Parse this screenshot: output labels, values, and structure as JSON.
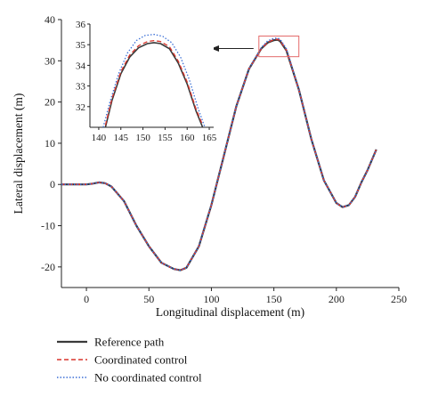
{
  "chart_data": {
    "type": "line",
    "xlabel": "Longitudinal displacement (m)",
    "ylabel": "Lateral displacement (m)",
    "xlim": [
      -20,
      250
    ],
    "ylim": [
      -25,
      40
    ],
    "xticks": [
      0,
      50,
      100,
      150,
      200,
      250
    ],
    "yticks": [
      -20,
      -10,
      0,
      10,
      20,
      30,
      40
    ],
    "grid": false,
    "legend_position": "bottom-left",
    "series": [
      {
        "name": "Reference path",
        "color": "#3a3a3a",
        "style": "solid",
        "x": [
          -20,
          0,
          5,
          10,
          15,
          20,
          30,
          40,
          50,
          60,
          70,
          75,
          80,
          90,
          100,
          110,
          120,
          130,
          140,
          145,
          150,
          153,
          155,
          160,
          170,
          180,
          190,
          200,
          205,
          210,
          215,
          220,
          225,
          232
        ],
        "y": [
          0,
          0,
          0.2,
          0.5,
          0.3,
          -0.5,
          -4,
          -10,
          -15,
          -19,
          -20.5,
          -20.8,
          -20.2,
          -15,
          -5,
          7,
          19,
          28,
          33,
          34.4,
          35.0,
          35.1,
          34.8,
          32.5,
          23,
          11,
          1,
          -4.5,
          -5.5,
          -5,
          -3,
          0.5,
          3.5,
          8.5
        ]
      },
      {
        "name": "Coordinated control",
        "color": "#d9342b",
        "style": "dashed",
        "x": [
          -20,
          0,
          5,
          10,
          15,
          20,
          30,
          40,
          50,
          60,
          70,
          75,
          80,
          90,
          100,
          110,
          120,
          130,
          140,
          145,
          150,
          153,
          155,
          160,
          170,
          180,
          190,
          200,
          205,
          210,
          215,
          220,
          225,
          232
        ],
        "y": [
          0,
          0,
          0.2,
          0.5,
          0.3,
          -0.5,
          -4,
          -10,
          -15,
          -19,
          -20.5,
          -20.8,
          -20.2,
          -15,
          -5,
          7,
          19,
          28,
          33,
          34.5,
          35.15,
          35.25,
          34.95,
          32.6,
          23,
          11,
          1,
          -4.5,
          -5.5,
          -5,
          -3,
          0.5,
          3.5,
          8.5
        ]
      },
      {
        "name": "No coordinated control",
        "color": "#3b6fd6",
        "style": "dotted",
        "x": [
          -20,
          0,
          5,
          10,
          15,
          20,
          30,
          40,
          50,
          60,
          70,
          75,
          80,
          90,
          100,
          110,
          120,
          130,
          140,
          145,
          150,
          153,
          155,
          160,
          170,
          180,
          190,
          200,
          205,
          210,
          215,
          220,
          225,
          232
        ],
        "y": [
          0,
          0,
          0.2,
          0.5,
          0.3,
          -0.5,
          -4,
          -10,
          -15,
          -19,
          -20.5,
          -20.8,
          -20.2,
          -15,
          -5,
          7,
          19,
          28,
          33.2,
          34.8,
          35.45,
          35.5,
          35.2,
          32.9,
          23,
          11,
          1,
          -4.5,
          -5.5,
          -5,
          -3,
          0.5,
          3.5,
          8.5
        ]
      }
    ],
    "zoom_box": {
      "xrange": [
        138,
        170
      ],
      "yrange": [
        31,
        36
      ]
    },
    "inset": {
      "xlim": [
        138,
        166
      ],
      "ylim": [
        31,
        36
      ],
      "xticks": [
        140,
        145,
        150,
        155,
        160,
        165
      ],
      "yticks": [
        32,
        33,
        34,
        35,
        36
      ],
      "series": [
        {
          "name": "Reference path",
          "color": "#3a3a3a",
          "style": "solid",
          "x": [
            141.5,
            143,
            145,
            147,
            149,
            151,
            152.5,
            154,
            156,
            158,
            160,
            162,
            163.5
          ],
          "y": [
            31.0,
            32.3,
            33.6,
            34.4,
            34.85,
            35.05,
            35.1,
            35.05,
            34.8,
            34.1,
            33.1,
            31.8,
            31.0
          ]
        },
        {
          "name": "Coordinated control",
          "color": "#d9342b",
          "style": "dashed",
          "x": [
            141.5,
            143,
            145,
            147,
            149,
            151,
            152.5,
            154,
            156,
            158,
            160,
            162,
            163.5
          ],
          "y": [
            31.1,
            32.4,
            33.7,
            34.5,
            34.95,
            35.15,
            35.2,
            35.15,
            34.9,
            34.2,
            33.2,
            31.9,
            31.1
          ]
        },
        {
          "name": "No coordinated control",
          "color": "#3b6fd6",
          "style": "dotted",
          "x": [
            141,
            142.5,
            144.5,
            146.5,
            148.5,
            150.5,
            152.5,
            154.5,
            156.5,
            158.5,
            160.5,
            162.5,
            164
          ],
          "y": [
            31.0,
            32.2,
            33.6,
            34.6,
            35.2,
            35.45,
            35.5,
            35.4,
            35.1,
            34.4,
            33.3,
            31.9,
            31.0
          ]
        }
      ]
    }
  }
}
